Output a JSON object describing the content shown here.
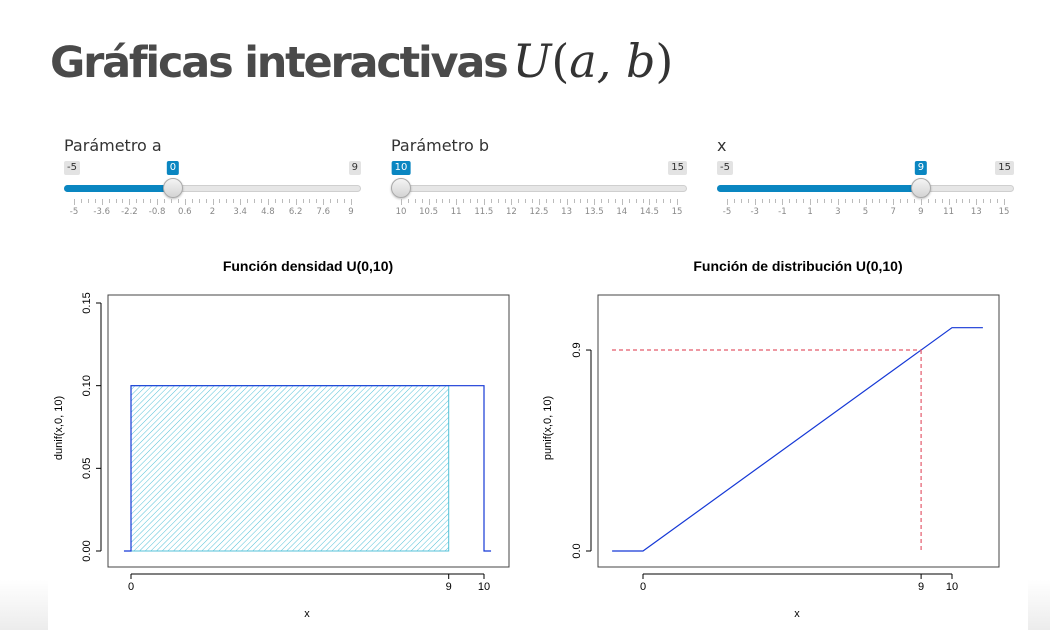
{
  "page_title": {
    "text": "Gráficas interactivas",
    "math_var": "U",
    "math_open": "(",
    "math_args": "a, b",
    "math_close": ")"
  },
  "sliders": [
    {
      "id": "a",
      "label": "Parámetro a",
      "min": -5,
      "max": 9,
      "value": 0,
      "min_label": "-5",
      "max_label": "9",
      "value_label": "0",
      "filled": true,
      "major_ticks": [
        "-5",
        "-3.6",
        "-2.2",
        "-0.8",
        "0.6",
        "2",
        "3.4",
        "4.8",
        "6.2",
        "7.6",
        "9"
      ]
    },
    {
      "id": "b",
      "label": "Parámetro b",
      "min": 10,
      "max": 15,
      "value": 10,
      "min_label": "10",
      "max_label": "15",
      "value_label": "10",
      "filled": false,
      "major_ticks": [
        "10",
        "10.5",
        "11",
        "11.5",
        "12",
        "12.5",
        "13",
        "13.5",
        "14",
        "14.5",
        "15"
      ]
    },
    {
      "id": "x",
      "label": "x",
      "min": -5,
      "max": 15,
      "value": 9,
      "min_label": "-5",
      "max_label": "15",
      "value_label": "9",
      "filled": true,
      "major_ticks": [
        "-5",
        "-3",
        "-1",
        "1",
        "3",
        "5",
        "7",
        "9",
        "11",
        "13",
        "15"
      ]
    }
  ],
  "colors": {
    "slider_accent": "#0a86c1",
    "curve": "#1538d6",
    "shade": "#55c2d8",
    "reference": "#e35a6b"
  },
  "chart_data": [
    {
      "type": "line",
      "title": "Función densidad U(0,10)",
      "xlabel": "x",
      "ylabel": "dunif(x,0, 10)",
      "xlim": [
        -1,
        11
      ],
      "ylim": [
        0,
        0.15
      ],
      "xticks": [
        "0",
        "9",
        "10"
      ],
      "yticks": [
        "0.00",
        "0.05",
        "0.10",
        "0.15"
      ],
      "series": [
        {
          "x": [
            -0.2,
            0,
            0,
            10,
            10,
            0.2
          ],
          "y": [
            0,
            0,
            0.1,
            0.1,
            0,
            0
          ],
          "x_end": 10.2
        }
      ],
      "shaded_region": {
        "x_from": 0,
        "x_to": 9,
        "y": 0.1,
        "pattern": "hatched"
      }
    },
    {
      "type": "line",
      "title": "Función de distribución U(0,10)",
      "xlabel": "x",
      "ylabel": "punif(x,0, 10)",
      "xlim": [
        -1,
        11
      ],
      "ylim": [
        0,
        1
      ],
      "xticks": [
        "0",
        "9",
        "10"
      ],
      "yticks": [
        "0.0",
        "0.9"
      ],
      "series": [
        {
          "x": [
            -1,
            0,
            10,
            11
          ],
          "y": [
            0,
            0,
            1,
            1
          ]
        }
      ],
      "reference_point": {
        "x": 9,
        "y": 0.9,
        "style": "dashed"
      }
    }
  ]
}
